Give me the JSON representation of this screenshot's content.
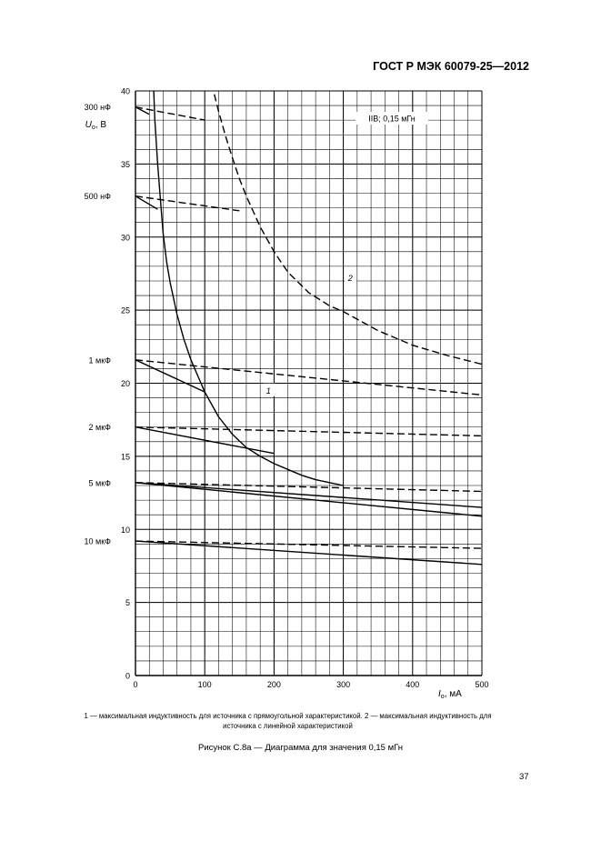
{
  "document": {
    "header": "ГОСТ Р МЭК 60079-25—2012",
    "caption_line1": "1 — максимальная индуктивность для источника с прямоугольной характеристикой. 2 — максимальная индуктивность для",
    "caption_line2": "источника с линейной характеристикой",
    "figure_title": "Рисунок С.8а — Диаграмма для значения 0,15 мГн",
    "page_number": "37"
  },
  "chart_data": {
    "type": "line",
    "title": "",
    "xlabel": "I",
    "xlabel_sub": "o",
    "xlabel_unit": ", мА",
    "ylabel": "U",
    "ylabel_sub": "o",
    "ylabel_unit": ", В",
    "xlim": [
      0,
      500
    ],
    "ylim": [
      0,
      40
    ],
    "grid": true,
    "x_ticks": [
      0,
      100,
      200,
      300,
      400,
      500
    ],
    "y_ticks": [
      0,
      5,
      10,
      15,
      20,
      25,
      30,
      35,
      40
    ],
    "legend_box": "IIB; 0,15 мГн",
    "capacitance_labels": [
      {
        "text": "300 нФ",
        "y": 38.9
      },
      {
        "text": "500 нФ",
        "y": 32.8
      },
      {
        "text": "1 мкФ",
        "y": 21.6
      },
      {
        "text": "2 мкФ",
        "y": 17.0
      },
      {
        "text": "5 мкФ",
        "y": 13.2
      },
      {
        "text": "10 мкФ",
        "y": 9.2
      }
    ],
    "curve_labels": [
      {
        "text": "1",
        "x": 192,
        "y": 19.3
      },
      {
        "text": "2",
        "x": 310,
        "y": 27.0
      }
    ],
    "series": [
      {
        "name": "1",
        "style": "solid",
        "x": [
          26,
          28,
          32,
          36,
          40,
          45,
          50,
          60,
          70,
          80,
          90,
          100,
          120,
          140,
          160,
          180,
          200,
          220,
          240,
          260,
          280,
          300
        ],
        "y": [
          40.5,
          38,
          35,
          32.6,
          30.2,
          28.3,
          26.9,
          24.7,
          23.0,
          21.6,
          20.5,
          19.4,
          17.7,
          16.5,
          15.6,
          15.0,
          14.5,
          14.1,
          13.7,
          13.4,
          13.2,
          13.0
        ]
      },
      {
        "name": "2",
        "style": "dashed",
        "x": [
          110,
          120,
          130,
          140,
          150,
          160,
          180,
          200,
          220,
          250,
          280,
          300,
          350,
          400,
          450,
          500
        ],
        "y": [
          40.5,
          38.6,
          36.9,
          35.4,
          34.0,
          32.8,
          30.7,
          29.0,
          27.6,
          26.2,
          25.3,
          24.9,
          23.6,
          22.6,
          21.9,
          21.3
        ]
      },
      {
        "name": "300 нФ dashed",
        "style": "dashed",
        "x": [
          0,
          100
        ],
        "y": [
          38.9,
          38.0
        ]
      },
      {
        "name": "300 нФ solid",
        "style": "solid",
        "x": [
          0,
          20
        ],
        "y": [
          38.9,
          38.4
        ]
      },
      {
        "name": "500 нФ dashed",
        "style": "dashed",
        "x": [
          0,
          150
        ],
        "y": [
          32.8,
          31.8
        ]
      },
      {
        "name": "500 нФ solid",
        "style": "solid",
        "x": [
          0,
          32
        ],
        "y": [
          32.8,
          31.9
        ]
      },
      {
        "name": "1 мкФ dashed",
        "style": "dashed",
        "x": [
          0,
          500
        ],
        "y": [
          21.6,
          19.2
        ]
      },
      {
        "name": "1 мкФ solid",
        "style": "solid",
        "x": [
          0,
          100
        ],
        "y": [
          21.6,
          19.4
        ]
      },
      {
        "name": "2 мкФ dashed",
        "style": "dashed",
        "x": [
          0,
          500
        ],
        "y": [
          17.0,
          16.4
        ]
      },
      {
        "name": "2 мкФ solid",
        "style": "solid",
        "x": [
          0,
          200
        ],
        "y": [
          17.0,
          15.2
        ]
      },
      {
        "name": "5 мкФ dashed",
        "style": "dashed",
        "x": [
          0,
          500
        ],
        "y": [
          13.2,
          12.6
        ]
      },
      {
        "name": "5 мкФ solid upper",
        "style": "solid",
        "x": [
          0,
          500
        ],
        "y": [
          13.2,
          11.5
        ]
      },
      {
        "name": "5 мкФ solid lower",
        "style": "solid",
        "x": [
          0,
          500
        ],
        "y": [
          13.2,
          10.9
        ]
      },
      {
        "name": "10 мкФ dashed",
        "style": "dashed",
        "x": [
          0,
          500
        ],
        "y": [
          9.2,
          8.7
        ]
      },
      {
        "name": "10 мкФ solid",
        "style": "solid",
        "x": [
          0,
          500
        ],
        "y": [
          9.2,
          7.6
        ]
      }
    ]
  }
}
